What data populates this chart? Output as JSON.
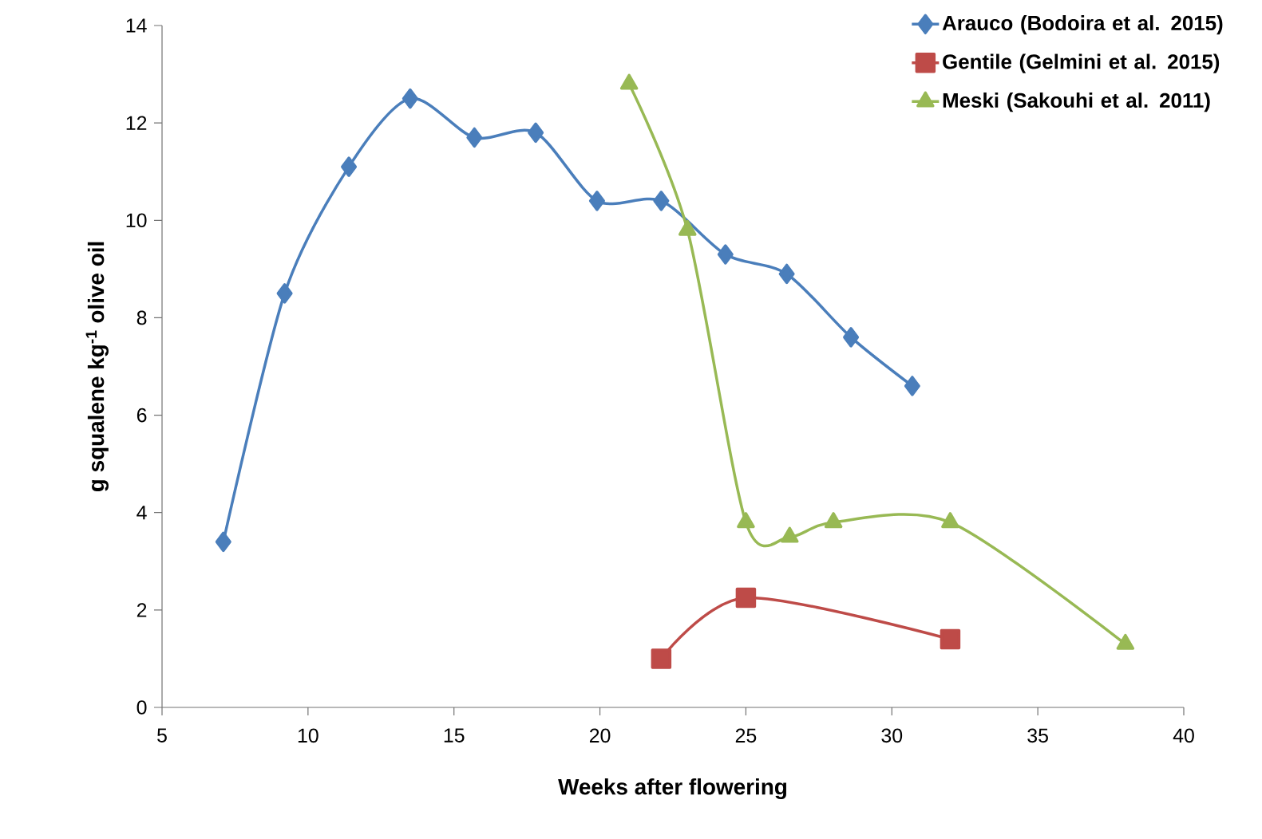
{
  "chart_data": {
    "type": "line",
    "xlabel": "Weeks after flowering",
    "ylabel": "g squalene kg$^{-1}$ olive oil",
    "xlim": [
      5,
      40
    ],
    "xticks": [
      5,
      10,
      15,
      20,
      25,
      30,
      35,
      40
    ],
    "ylim": [
      0,
      14
    ],
    "yticks": [
      0,
      2,
      4,
      6,
      8,
      10,
      12,
      14
    ],
    "grid": false,
    "legend": "top right",
    "series": [
      {
        "name": "Arauco (Bodoira et al. 2015)",
        "color": "#4a7ebb",
        "marker": "diamond",
        "x": [
          7.1,
          9.2,
          11.4,
          13.5,
          15.7,
          17.8,
          19.9,
          22.1,
          24.3,
          26.4,
          28.6,
          30.7
        ],
        "values": [
          3.4,
          8.5,
          11.1,
          12.5,
          11.7,
          11.8,
          10.4,
          10.4,
          9.3,
          8.9,
          7.6,
          6.6
        ]
      },
      {
        "name": "Gentile (Gelmini et al. 2015)",
        "color": "#be4b48",
        "marker": "square",
        "x": [
          22.1,
          25,
          32
        ],
        "values": [
          1.0,
          2.25,
          1.4
        ]
      },
      {
        "name": "Meski (Sakouhi et al. 2011)",
        "color": "#98b954",
        "marker": "triangle",
        "x": [
          21,
          23,
          25,
          26.5,
          28,
          32,
          38
        ],
        "values": [
          12.8,
          9.8,
          3.8,
          3.5,
          3.8,
          3.8,
          1.3
        ]
      }
    ]
  }
}
